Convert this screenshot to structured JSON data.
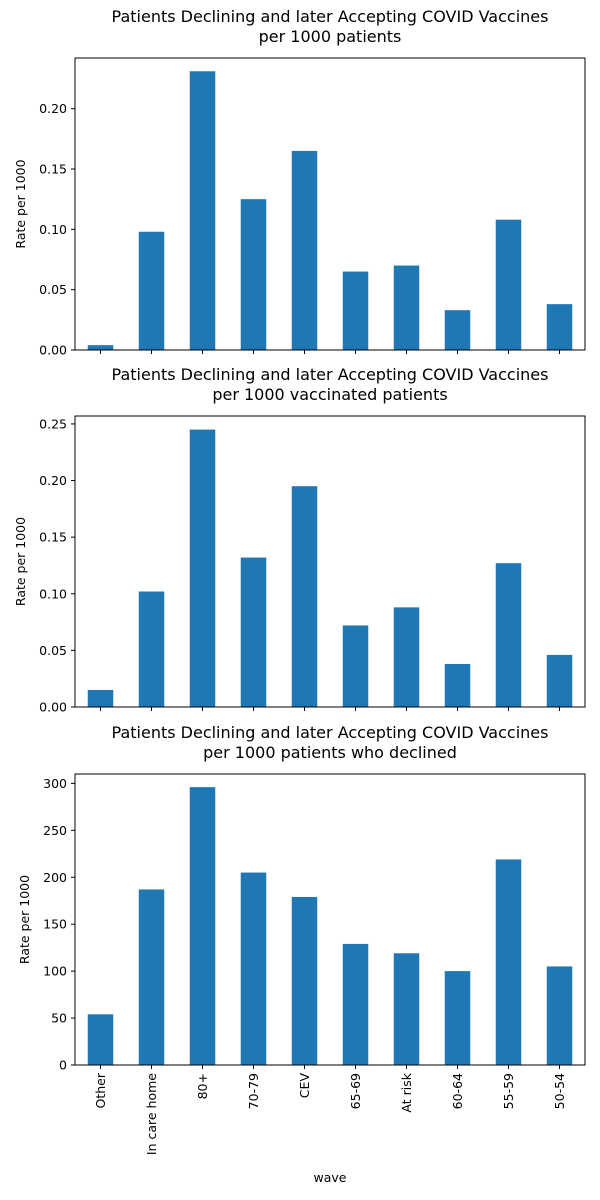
{
  "figure": {
    "xlabel": "wave"
  },
  "colors": {
    "bar": "#1f77b4",
    "axes": "#000000",
    "background": "#ffffff"
  },
  "chart_data": [
    {
      "type": "bar",
      "title_lines": [
        "Patients Declining and later Accepting COVID Vaccines",
        "per 1000 patients"
      ],
      "ylabel": "Rate per 1000",
      "categories": [
        "Other",
        "In care home",
        "80+",
        "70-79",
        "CEV",
        "65-69",
        "At risk",
        "60-64",
        "55-59",
        "50-54"
      ],
      "values": [
        0.004,
        0.098,
        0.231,
        0.125,
        0.165,
        0.065,
        0.07,
        0.033,
        0.108,
        0.038
      ],
      "ylim": [
        0,
        0.242
      ],
      "yticks": [
        "0.00",
        "0.05",
        "0.10",
        "0.15",
        "0.20"
      ],
      "grid": false,
      "legend": "none"
    },
    {
      "type": "bar",
      "title_lines": [
        "Patients Declining and later Accepting COVID Vaccines",
        "per 1000 vaccinated patients"
      ],
      "ylabel": "Rate per 1000",
      "categories": [
        "Other",
        "In care home",
        "80+",
        "70-79",
        "CEV",
        "65-69",
        "At risk",
        "60-64",
        "55-59",
        "50-54"
      ],
      "values": [
        0.015,
        0.102,
        0.245,
        0.132,
        0.195,
        0.072,
        0.088,
        0.038,
        0.127,
        0.046
      ],
      "ylim": [
        0,
        0.257
      ],
      "yticks": [
        "0.00",
        "0.05",
        "0.10",
        "0.15",
        "0.20",
        "0.25"
      ],
      "grid": false,
      "legend": "none"
    },
    {
      "type": "bar",
      "title_lines": [
        "Patients Declining and later Accepting COVID Vaccines",
        "per 1000 patients who declined"
      ],
      "ylabel": "Rate per 1000",
      "categories": [
        "Other",
        "In care home",
        "80+",
        "70-79",
        "CEV",
        "65-69",
        "At risk",
        "60-64",
        "55-59",
        "50-54"
      ],
      "values": [
        54,
        187,
        296,
        205,
        179,
        129,
        119,
        100,
        219,
        105
      ],
      "ylim": [
        0,
        310
      ],
      "yticks": [
        "0",
        "50",
        "100",
        "150",
        "200",
        "250",
        "300"
      ],
      "grid": false,
      "legend": "none"
    }
  ]
}
